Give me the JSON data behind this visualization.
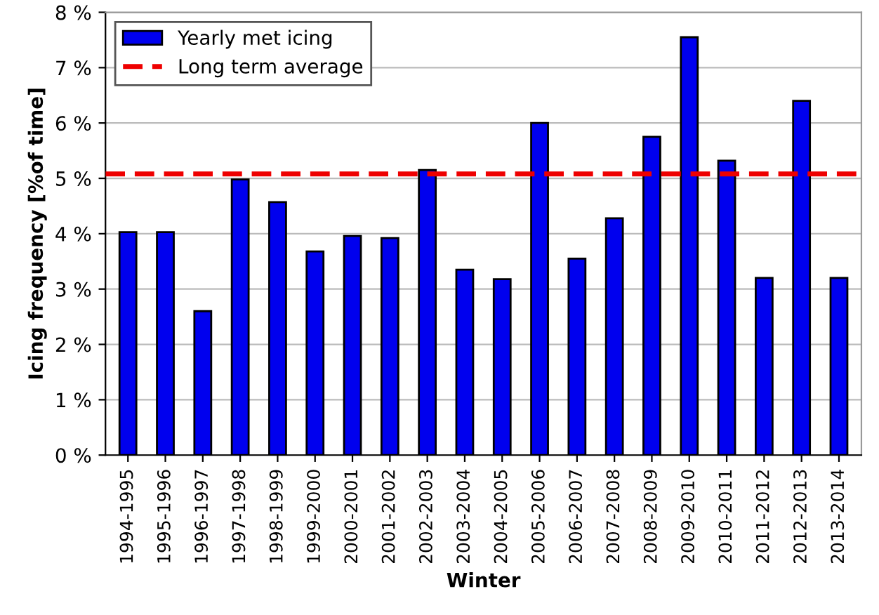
{
  "chart_data": {
    "type": "bar",
    "xlabel": "Winter",
    "ylabel": "Icing frequency [%of time]",
    "categories": [
      "1994-1995",
      "1995-1996",
      "1996-1997",
      "1997-1998",
      "1998-1999",
      "1999-2000",
      "2000-2001",
      "2001-2002",
      "2002-2003",
      "2003-2004",
      "2004-2005",
      "2005-2006",
      "2006-2007",
      "2007-2008",
      "2008-2009",
      "2009-2010",
      "2010-2011",
      "2011-2012",
      "2012-2013",
      "2013-2014"
    ],
    "series": [
      {
        "name": "Yearly met icing",
        "color": "#0000ee",
        "values": [
          4.03,
          4.03,
          2.6,
          4.98,
          4.57,
          3.68,
          3.96,
          3.92,
          5.15,
          3.35,
          3.18,
          6.0,
          3.55,
          4.28,
          5.75,
          7.55,
          5.32,
          3.2,
          6.4,
          3.2
        ]
      }
    ],
    "ref_lines": [
      {
        "axis": "y",
        "value": 5.08,
        "label": "Long term average",
        "color": "#ee0000",
        "line_style": "dashed"
      }
    ],
    "ylim": [
      0,
      8
    ],
    "yticks": [
      {
        "value": 0,
        "label": "0 %"
      },
      {
        "value": 1,
        "label": "1 %"
      },
      {
        "value": 2,
        "label": "2 %"
      },
      {
        "value": 3,
        "label": "3 %"
      },
      {
        "value": 4,
        "label": "4 %"
      },
      {
        "value": 5,
        "label": "5 %"
      },
      {
        "value": 6,
        "label": "6 %"
      },
      {
        "value": 7,
        "label": "7 %"
      },
      {
        "value": 8,
        "label": "8 %"
      }
    ],
    "grid": "y",
    "legend": "top left"
  }
}
